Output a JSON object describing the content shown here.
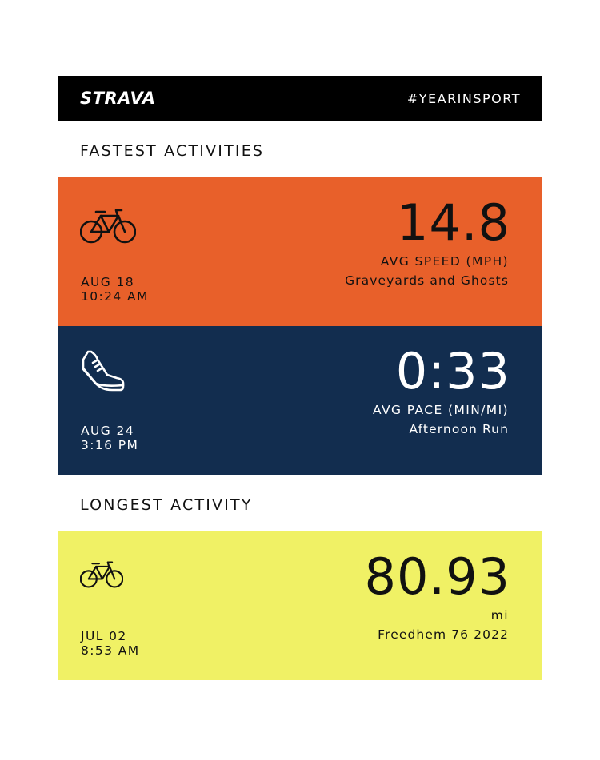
{
  "header": {
    "logo": "STRAVA",
    "hashtag": "#YEARINSPORT"
  },
  "sections": [
    {
      "title": "FASTEST ACTIVITIES",
      "activities": [
        {
          "icon": "bike-icon",
          "date": "AUG 18",
          "time": "10:24 AM",
          "value": "14.8",
          "metric": "AVG SPEED (MPH)",
          "name": "Graveyards and Ghosts",
          "color": "#e8602a"
        },
        {
          "icon": "run-shoe-icon",
          "date": "AUG 24",
          "time": "3:16 PM",
          "value": "0:33",
          "metric": "AVG PACE (MIN/MI)",
          "name": "Afternoon Run",
          "color": "#122d4f"
        }
      ]
    },
    {
      "title": "LONGEST ACTIVITY",
      "activities": [
        {
          "icon": "bike-icon",
          "date": "JUL 02",
          "time": "8:53 AM",
          "value": "80.93",
          "metric": "mi",
          "name": "Freedhem 76 2022",
          "color": "#f0f165"
        }
      ]
    }
  ]
}
